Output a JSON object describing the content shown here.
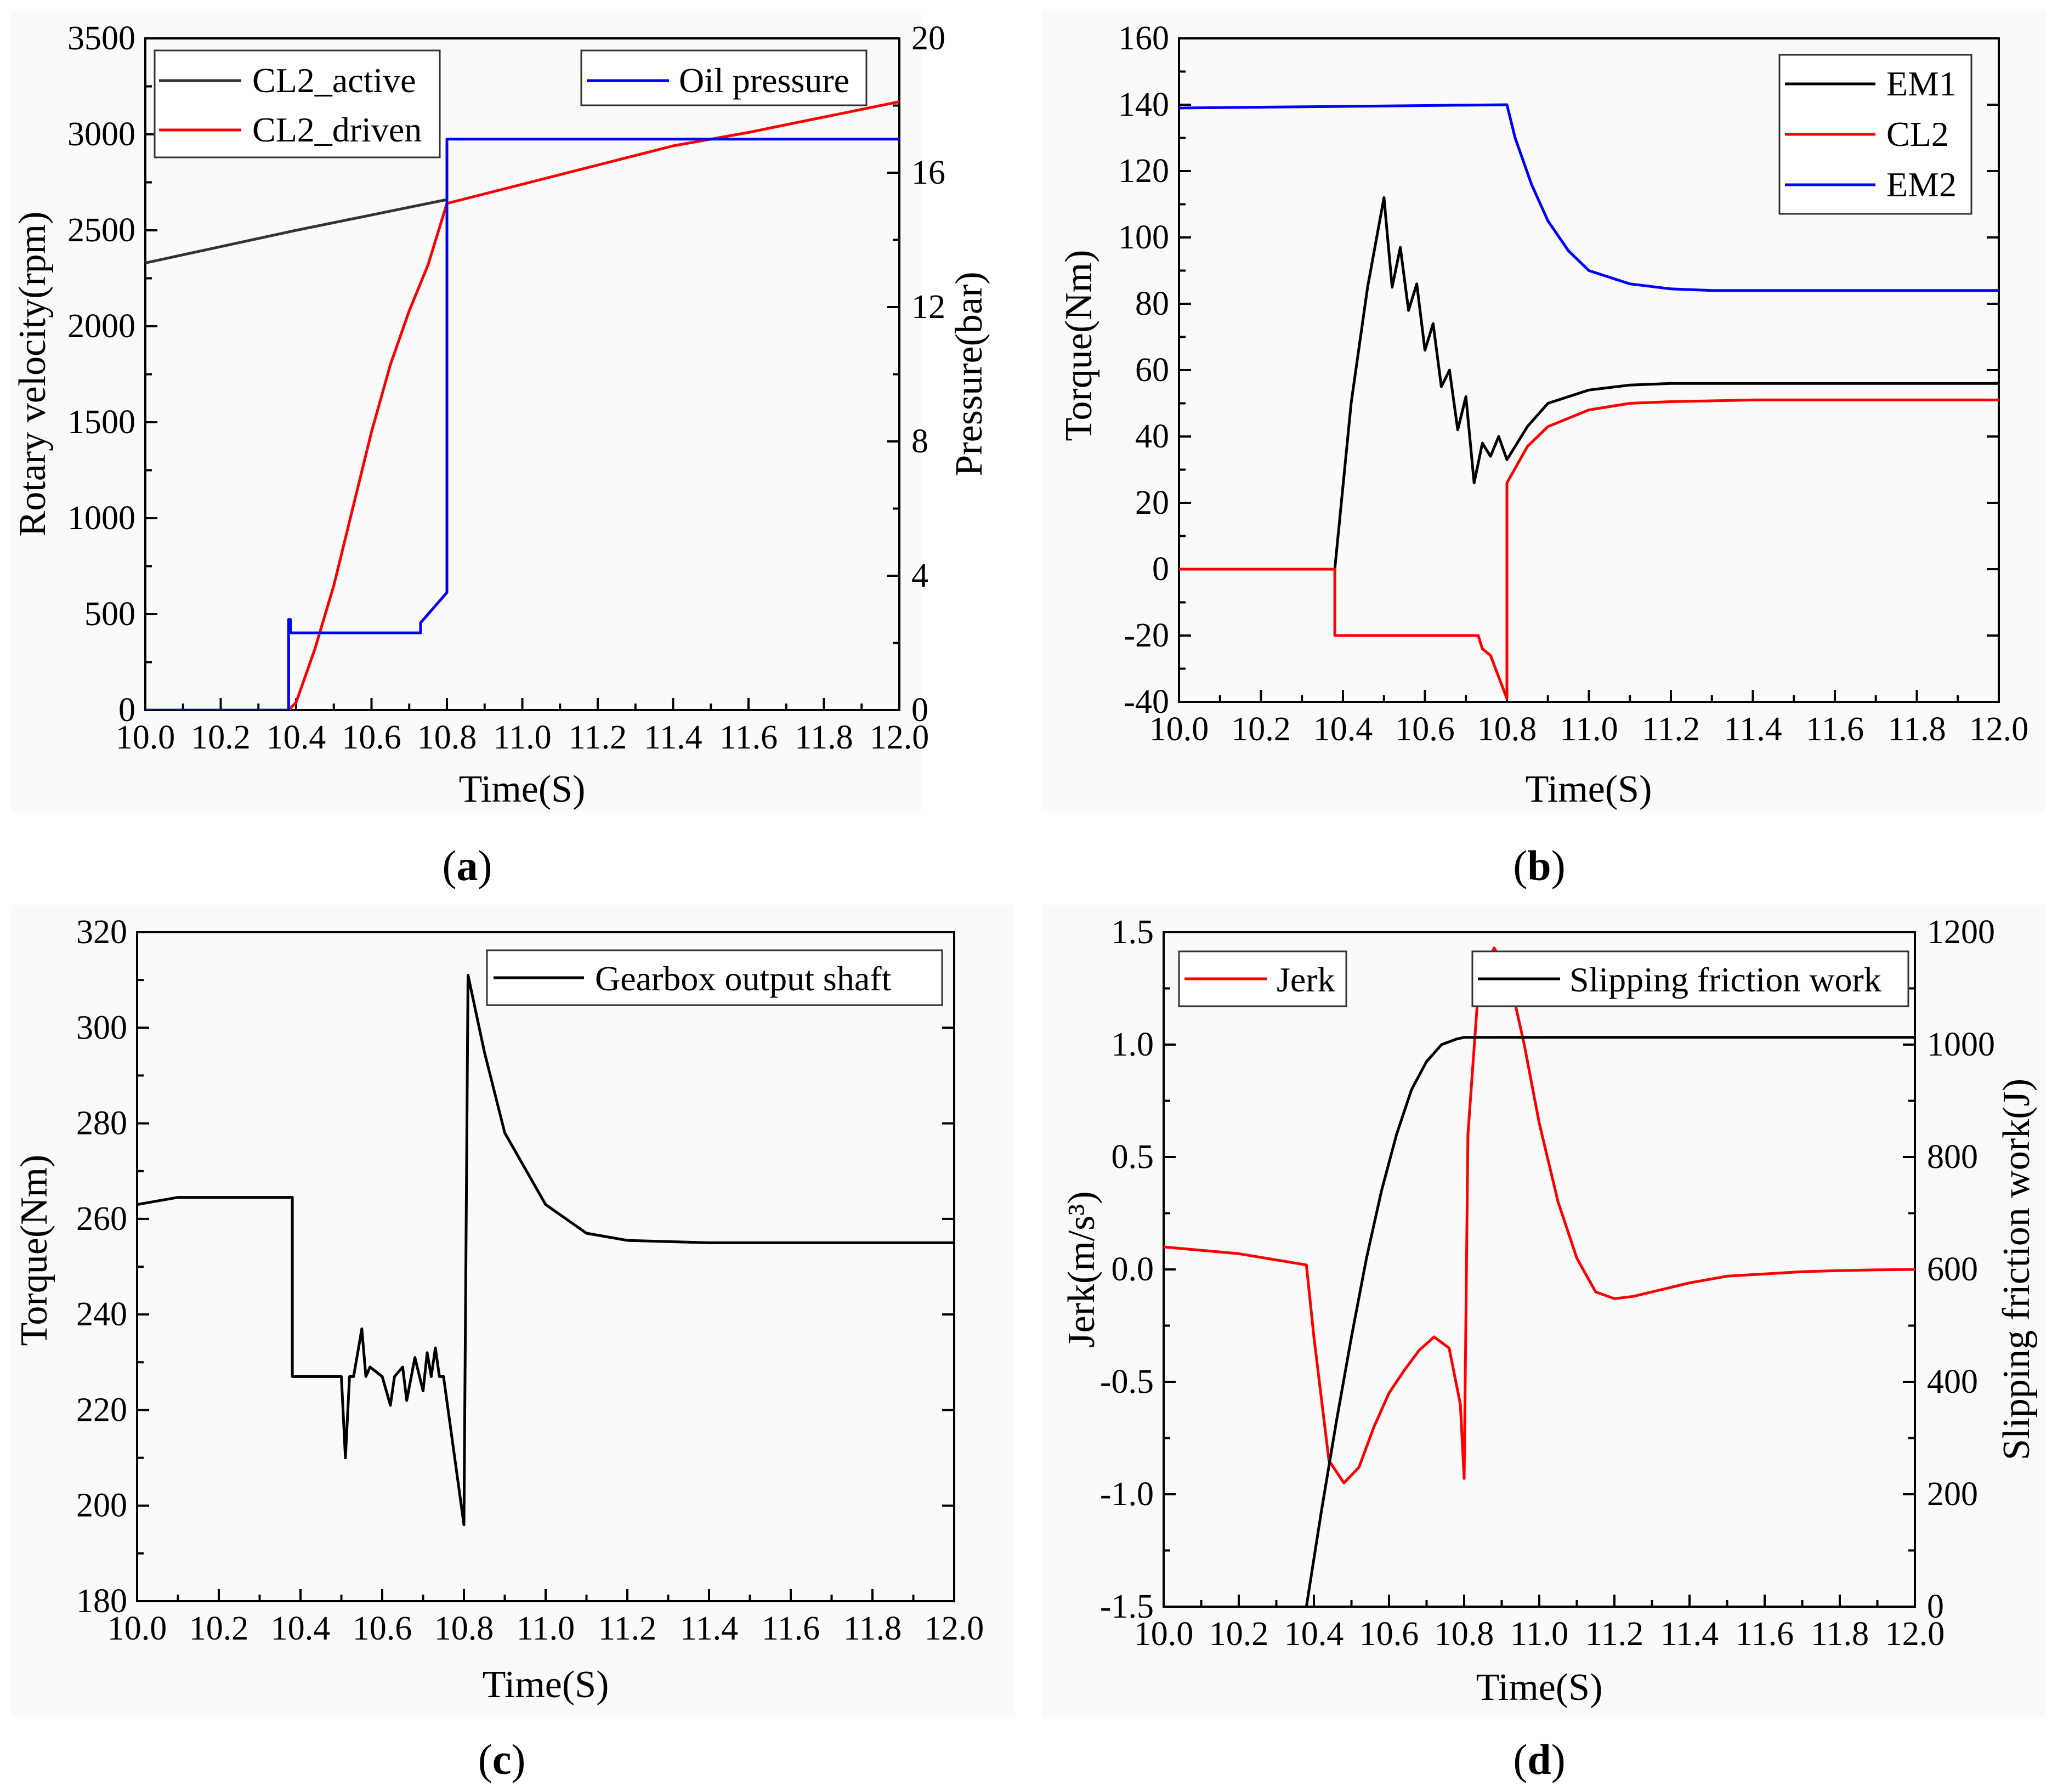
{
  "chart_data": [
    {
      "id": "a",
      "type": "line",
      "panel_label": "a",
      "xlabel": "Time(S)",
      "ylabel": "Rotary velocity(rpm)",
      "y2label": "Pressure(bar)",
      "xlim": [
        10.0,
        12.0
      ],
      "ylim": [
        0,
        3500
      ],
      "y2lim": [
        0,
        20
      ],
      "xticks": [
        "10.0",
        "10.2",
        "10.4",
        "10.6",
        "10.8",
        "11.0",
        "11.2",
        "11.4",
        "11.6",
        "11.8",
        "12.0"
      ],
      "yticks": [
        "0",
        "500",
        "1000",
        "1500",
        "2000",
        "2500",
        "3000",
        "3500"
      ],
      "y2ticks": [
        "0",
        "4",
        "8",
        "12",
        "16",
        "20"
      ],
      "legend_position": "top",
      "series": [
        {
          "name": "CL2_active",
          "color": "#333333",
          "axis": "left",
          "x": [
            10.0,
            10.4,
            10.8
          ],
          "y": [
            2330,
            2500,
            2660
          ]
        },
        {
          "name": "CL2_driven",
          "color": "#ff0000",
          "axis": "left",
          "x": [
            10.38,
            10.4,
            10.45,
            10.5,
            10.55,
            10.6,
            10.65,
            10.7,
            10.75,
            10.8,
            11.0,
            11.2,
            11.4,
            11.6,
            11.8,
            12.0
          ],
          "y": [
            0,
            40,
            320,
            650,
            1050,
            1450,
            1800,
            2080,
            2320,
            2640,
            2740,
            2840,
            2940,
            3010,
            3090,
            3170
          ]
        },
        {
          "name": "Oil pressure",
          "color": "#0000ff",
          "axis": "right",
          "x": [
            10.0,
            10.38,
            10.38,
            10.385,
            10.385,
            10.73,
            10.73,
            10.8,
            10.8,
            12.0
          ],
          "y": [
            0,
            0,
            2.7,
            2.7,
            2.3,
            2.3,
            2.6,
            3.5,
            17.0,
            17.0
          ]
        }
      ]
    },
    {
      "id": "b",
      "type": "line",
      "panel_label": "b",
      "xlabel": "Time(S)",
      "ylabel": "Torque(Nm)",
      "xlim": [
        10.0,
        12.0
      ],
      "ylim": [
        -40,
        160
      ],
      "xticks": [
        "10.0",
        "10.2",
        "10.4",
        "10.6",
        "10.8",
        "11.0",
        "11.2",
        "11.4",
        "11.6",
        "11.8",
        "12.0"
      ],
      "yticks": [
        "-40",
        "-20",
        "0",
        "20",
        "40",
        "60",
        "80",
        "100",
        "120",
        "140",
        "160"
      ],
      "legend_position": "top-right",
      "series": [
        {
          "name": "EM1",
          "color": "#000000",
          "x": [
            10.38,
            10.42,
            10.46,
            10.5,
            10.52,
            10.54,
            10.56,
            10.58,
            10.6,
            10.62,
            10.64,
            10.66,
            10.68,
            10.7,
            10.72,
            10.74,
            10.76,
            10.78,
            10.8,
            10.85,
            10.9,
            11.0,
            11.1,
            11.2,
            11.4,
            11.6,
            11.8,
            12.0
          ],
          "y": [
            0,
            50,
            85,
            112,
            85,
            97,
            78,
            86,
            66,
            74,
            55,
            60,
            42,
            52,
            26,
            38,
            34,
            40,
            33,
            43,
            50,
            54,
            55.5,
            56,
            56,
            56,
            56,
            56
          ]
        },
        {
          "name": "CL2",
          "color": "#ff0000",
          "x": [
            10.0,
            10.38,
            10.38,
            10.73,
            10.74,
            10.76,
            10.8,
            10.8,
            10.85,
            10.9,
            11.0,
            11.1,
            11.2,
            11.4,
            11.6,
            11.8,
            12.0
          ],
          "y": [
            0,
            0,
            -20,
            -20,
            -24,
            -26,
            -39,
            26,
            37,
            43,
            48,
            50,
            50.5,
            51,
            51,
            51,
            51
          ]
        },
        {
          "name": "EM2",
          "color": "#0000ff",
          "x": [
            10.0,
            10.8,
            10.82,
            10.86,
            10.9,
            10.95,
            11.0,
            11.1,
            11.2,
            11.3,
            11.4,
            11.6,
            11.8,
            12.0
          ],
          "y": [
            139,
            140,
            130,
            116,
            105,
            96,
            90,
            86,
            84.5,
            84,
            84,
            84,
            84,
            84
          ]
        }
      ]
    },
    {
      "id": "c",
      "type": "line",
      "panel_label": "c",
      "xlabel": "Time(S)",
      "ylabel": "Torque(Nm)",
      "xlim": [
        10.0,
        12.0
      ],
      "ylim": [
        180,
        320
      ],
      "xticks": [
        "10.0",
        "10.2",
        "10.4",
        "10.6",
        "10.8",
        "11.0",
        "11.2",
        "11.4",
        "11.6",
        "11.8",
        "12.0"
      ],
      "yticks": [
        "180",
        "200",
        "220",
        "240",
        "260",
        "280",
        "300",
        "320"
      ],
      "legend_position": "top-right",
      "series": [
        {
          "name": "Gearbox output shaft",
          "color": "#000000",
          "x": [
            10.0,
            10.1,
            10.38,
            10.38,
            10.45,
            10.5,
            10.51,
            10.52,
            10.53,
            10.55,
            10.56,
            10.57,
            10.6,
            10.62,
            10.63,
            10.65,
            10.66,
            10.68,
            10.7,
            10.71,
            10.72,
            10.73,
            10.74,
            10.75,
            10.8,
            10.81,
            10.85,
            10.9,
            11.0,
            11.1,
            11.2,
            11.4,
            11.6,
            11.8,
            12.0
          ],
          "y": [
            263,
            264.5,
            264.5,
            227,
            227,
            227,
            210,
            227,
            227,
            237,
            227,
            229,
            227,
            221,
            227,
            229,
            222,
            231,
            224,
            232,
            227,
            233,
            227,
            227,
            196,
            311,
            295,
            278,
            263,
            257,
            255.5,
            255,
            255,
            255,
            255
          ]
        }
      ]
    },
    {
      "id": "d",
      "type": "line",
      "panel_label": "d",
      "xlabel": "Time(S)",
      "ylabel": "Jerk(m/s³)",
      "y2label": "Slipping friction work(J)",
      "xlim": [
        10.0,
        12.0
      ],
      "ylim": [
        -1.5,
        1.5
      ],
      "y2lim": [
        0,
        1200
      ],
      "xticks": [
        "10.0",
        "10.2",
        "10.4",
        "10.6",
        "10.8",
        "11.0",
        "11.2",
        "11.4",
        "11.6",
        "11.8",
        "12.0"
      ],
      "yticks": [
        "-1.5",
        "-1.0",
        "-0.5",
        "0.0",
        "0.5",
        "1.0",
        "1.5"
      ],
      "y2ticks": [
        "0",
        "200",
        "400",
        "600",
        "800",
        "1000",
        "1200"
      ],
      "legend_position": "top",
      "series": [
        {
          "name": "Jerk",
          "color": "#ff0000",
          "axis": "left",
          "x": [
            10.0,
            10.2,
            10.38,
            10.4,
            10.44,
            10.48,
            10.52,
            10.56,
            10.6,
            10.64,
            10.68,
            10.72,
            10.76,
            10.79,
            10.8,
            10.81,
            10.84,
            10.88,
            10.92,
            10.96,
            11.0,
            11.05,
            11.1,
            11.15,
            11.2,
            11.25,
            11.3,
            11.4,
            11.5,
            11.6,
            11.7,
            11.8,
            11.9,
            12.0
          ],
          "y": [
            0.1,
            0.07,
            0.02,
            -0.3,
            -0.85,
            -0.95,
            -0.88,
            -0.7,
            -0.55,
            -0.45,
            -0.36,
            -0.3,
            -0.35,
            -0.6,
            -0.93,
            0.6,
            1.3,
            1.43,
            1.3,
            1.0,
            0.65,
            0.3,
            0.05,
            -0.1,
            -0.13,
            -0.12,
            -0.1,
            -0.06,
            -0.03,
            -0.02,
            -0.01,
            -0.005,
            -0.002,
            0.0
          ]
        },
        {
          "name": "Slipping friction work",
          "color": "#000000",
          "axis": "right",
          "x": [
            10.38,
            10.42,
            10.46,
            10.5,
            10.54,
            10.58,
            10.62,
            10.66,
            10.7,
            10.74,
            10.78,
            10.8,
            11.0,
            11.2,
            11.4,
            11.6,
            11.8,
            12.0
          ],
          "y": [
            0,
            170,
            330,
            480,
            620,
            740,
            840,
            920,
            970,
            1000,
            1010,
            1013,
            1013,
            1013,
            1013,
            1013,
            1013,
            1013
          ]
        }
      ]
    }
  ]
}
